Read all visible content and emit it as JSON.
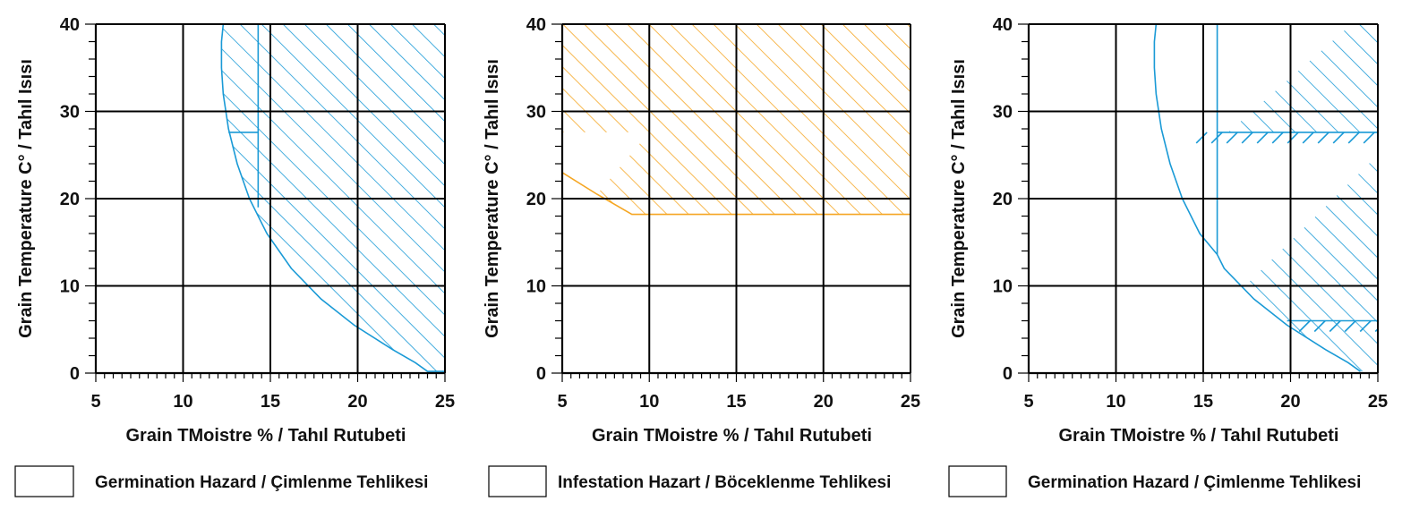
{
  "chart_data": [
    {
      "type": "area",
      "title": "",
      "xlabel": "Grain TMoistre % / Tahıl Rutubeti",
      "ylabel": "Grain Temperature C° / Tahıl Isısı",
      "xlim": [
        5,
        25
      ],
      "ylim": [
        0,
        40
      ],
      "x_ticks": [
        5,
        10,
        15,
        20,
        25
      ],
      "y_ticks": [
        0,
        10,
        20,
        30,
        40
      ],
      "grid": true,
      "hatch_color": "#1a9ad6",
      "legend": "Germination Hazard / Çimlenme Tehlikesi",
      "regions": [
        {
          "name": "germination-hazard",
          "boundary": [
            [
              12.3,
              40
            ],
            [
              12.2,
              38
            ],
            [
              12.2,
              35
            ],
            [
              12.3,
              32
            ],
            [
              12.6,
              28
            ],
            [
              13.1,
              24
            ],
            [
              13.8,
              20
            ],
            [
              14.8,
              16
            ],
            [
              16.2,
              12
            ],
            [
              17.9,
              8.5
            ],
            [
              19.8,
              5.5
            ],
            [
              22,
              2.7
            ],
            [
              23.3,
              1.2
            ],
            [
              24,
              0.2
            ],
            [
              25,
              0.2
            ],
            [
              25,
              40
            ]
          ]
        }
      ],
      "lines": [
        {
          "name": "moisture-14-line",
          "points": [
            [
              14.3,
              40
            ],
            [
              14.3,
              19
            ]
          ]
        },
        {
          "name": "temp-27-5-line",
          "points": [
            [
              12.6,
              27.6
            ],
            [
              14.3,
              27.6
            ]
          ]
        }
      ]
    },
    {
      "type": "area",
      "title": "",
      "xlabel": "Grain TMoistre % / Tahıl Rutubeti",
      "ylabel": "Grain Temperature C° / Tahıl Isısı",
      "xlim": [
        5,
        25
      ],
      "ylim": [
        0,
        40
      ],
      "x_ticks": [
        5,
        10,
        15,
        20,
        25
      ],
      "y_ticks": [
        0,
        10,
        20,
        30,
        40
      ],
      "grid": true,
      "hatch_color": "#f5a623",
      "legend": "Infestation Hazart / Böceklenme Tehlikesi",
      "regions": [
        {
          "name": "infestation-upper",
          "boundary": [
            [
              5,
              27.6
            ],
            [
              5,
              40
            ],
            [
              25,
              40
            ],
            [
              25,
              27.6
            ]
          ]
        },
        {
          "name": "infestation-lower",
          "boundary": [
            [
              7,
              20.5
            ],
            [
              9,
              18.2
            ],
            [
              25,
              18.2
            ],
            [
              25,
              27.6
            ],
            [
              10,
              27.6
            ]
          ]
        }
      ],
      "lines": [
        {
          "name": "infestation-boundary",
          "points": [
            [
              5,
              23
            ],
            [
              7,
              20.5
            ],
            [
              9,
              18.2
            ],
            [
              25,
              18.2
            ]
          ]
        }
      ]
    },
    {
      "type": "area",
      "title": "",
      "xlabel": "Grain TMoistre % / Tahıl Rutubeti",
      "ylabel": "Grain Temperature C° / Tahıl Isısı",
      "xlim": [
        5,
        25
      ],
      "ylim": [
        0,
        40
      ],
      "x_ticks": [
        5,
        10,
        15,
        20,
        25
      ],
      "y_ticks": [
        0,
        10,
        20,
        30,
        40
      ],
      "grid": true,
      "hatch_color": "#1a9ad6",
      "legend": "Germination Hazard / Çimlenme Tehlikesi",
      "regions": [
        {
          "name": "hazard-upper",
          "boundary": [
            [
              15.8,
              26.5
            ],
            [
              15.8,
              27.6
            ],
            [
              25.0,
              27.6
            ],
            [
              25.0,
              40
            ],
            [
              23.5,
              40
            ]
          ]
        },
        {
          "name": "hazard-lower",
          "boundary": [
            [
              17.4,
              10
            ],
            [
              19.8,
              5.5
            ],
            [
              22,
              2.7
            ],
            [
              23.3,
              1.2
            ],
            [
              24,
              0.2
            ],
            [
              25,
              0.2
            ],
            [
              25,
              25
            ]
          ]
        }
      ],
      "lines": [
        {
          "name": "germination-curve",
          "points": [
            [
              12.3,
              40
            ],
            [
              12.2,
              38
            ],
            [
              12.2,
              35
            ],
            [
              12.3,
              32
            ],
            [
              12.6,
              28
            ],
            [
              13.1,
              24
            ],
            [
              13.8,
              20
            ],
            [
              14.8,
              16
            ],
            [
              15.8,
              13.6
            ],
            [
              16.2,
              12
            ],
            [
              17.9,
              8.5
            ],
            [
              19.8,
              5.5
            ],
            [
              22,
              2.7
            ],
            [
              23.3,
              1.2
            ],
            [
              24,
              0.2
            ]
          ]
        },
        {
          "name": "moisture-16-line",
          "points": [
            [
              15.8,
              40
            ],
            [
              15.8,
              13.6
            ]
          ]
        },
        {
          "name": "temp-27-5-line",
          "points": [
            [
              15.8,
              27.6
            ],
            [
              25,
              27.6
            ]
          ]
        },
        {
          "name": "temp-6-line",
          "points": [
            [
              19.8,
              6
            ],
            [
              25,
              6
            ]
          ]
        }
      ],
      "edge_hatches": [
        {
          "name": "upper-edge-hatch",
          "x_from": 14.6,
          "x_to": 25,
          "y": 27.6
        },
        {
          "name": "lower-edge-hatch",
          "x_from": 20.5,
          "x_to": 25,
          "y": 6
        }
      ]
    }
  ],
  "legends": [
    {
      "label": "Germination Hazard / Çimlenme Tehlikesi"
    },
    {
      "label": "Infestation Hazart / Böceklenme Tehlikesi"
    },
    {
      "label": "Germination Hazard / Çimlenme Tehlikesi"
    }
  ]
}
